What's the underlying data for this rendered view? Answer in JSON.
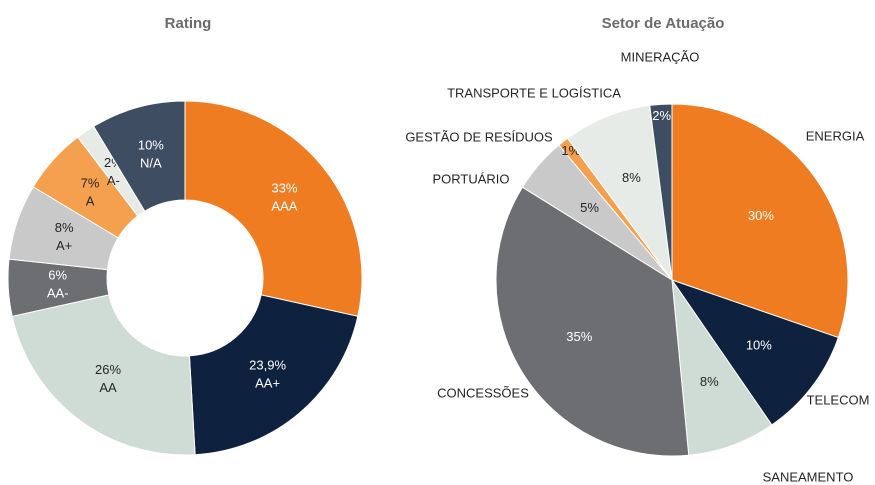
{
  "chart_data": [
    {
      "type": "donut",
      "title": "Rating",
      "categories": [
        "AAA",
        "AA+",
        "AA",
        "AA-",
        "A+",
        "A",
        "A-",
        "N/A"
      ],
      "values": [
        33,
        23.9,
        26,
        6,
        8,
        7,
        2,
        10
      ],
      "value_labels": [
        "33%",
        "23,9%",
        "26%",
        "6%",
        "8%",
        "7%",
        "2%",
        "10%"
      ],
      "colors": [
        "#f07c22",
        "#0e2240",
        "#cfdcd5",
        "#6d6e71",
        "#c9c9c9",
        "#f5a04f",
        "#e7ebe8",
        "#3e4d62"
      ]
    },
    {
      "type": "pie",
      "title": "Setor de Atuação",
      "categories": [
        "ENERGIA",
        "TELECOM",
        "SANEAMENTO",
        "CONCESSÕES",
        "PORTUÁRIO",
        "GESTÃO DE RESÍDUOS",
        "TRANSPORTE E LOGÍSTICA",
        "MINERAÇÃO"
      ],
      "values": [
        30,
        10,
        8,
        35,
        5,
        1,
        8,
        2
      ],
      "value_labels": [
        "30%",
        "10%",
        "8%",
        "35%",
        "5%",
        "1%",
        "8%",
        "2%"
      ],
      "colors": [
        "#f07c22",
        "#0e2240",
        "#cfdcd5",
        "#6d6e71",
        "#c9c9c9",
        "#f5a04f",
        "#e7ebe8",
        "#3e4d62"
      ]
    }
  ]
}
